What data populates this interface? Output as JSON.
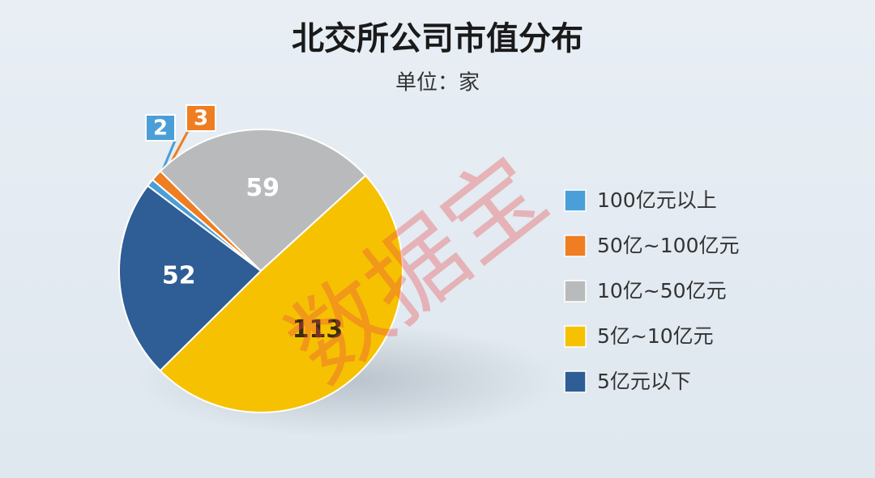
{
  "chart_data": {
    "type": "pie",
    "title": "北交所公司市值分布",
    "subtitle": "单位：家",
    "watermark": "数据宝",
    "categories": [
      "100亿元以上",
      "50亿~100亿元",
      "10亿~50亿元",
      "5亿~10亿元",
      "5亿元以下"
    ],
    "values": [
      2,
      3,
      59,
      113,
      52
    ],
    "colors": [
      "#4a9fd8",
      "#ef7d22",
      "#b8babc",
      "#f6c100",
      "#2f5d95"
    ],
    "legend": "right"
  }
}
